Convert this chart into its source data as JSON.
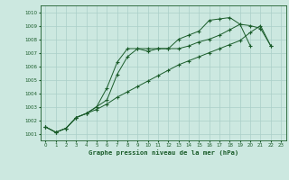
{
  "title": "Graphe pression niveau de la mer (hPa)",
  "xlim": [
    -0.5,
    23.5
  ],
  "ylim": [
    1000.5,
    1010.5
  ],
  "yticks": [
    1001,
    1002,
    1003,
    1004,
    1005,
    1006,
    1007,
    1008,
    1009,
    1010
  ],
  "xticks": [
    0,
    1,
    2,
    3,
    4,
    5,
    6,
    7,
    8,
    9,
    10,
    11,
    12,
    13,
    14,
    15,
    16,
    17,
    18,
    19,
    20,
    21,
    22,
    23
  ],
  "background_color": "#cce8e0",
  "grid_color": "#aacfc8",
  "line_color": "#1a5c2a",
  "line1": [
    1001.5,
    1001.1,
    1001.4,
    1002.2,
    1002.5,
    1003.0,
    1004.4,
    1006.3,
    1007.3,
    1007.3,
    1007.1,
    1007.3,
    1007.3,
    1008.0,
    1008.3,
    1008.6,
    1009.4,
    1009.5,
    1009.6,
    1009.1,
    1009.0,
    1008.8,
    1007.5,
    null
  ],
  "line2": [
    1001.5,
    1001.1,
    1001.4,
    1002.2,
    1002.5,
    1003.0,
    1003.5,
    1005.4,
    1006.7,
    1007.3,
    1007.3,
    1007.3,
    1007.3,
    1007.3,
    1007.5,
    1007.8,
    1008.0,
    1008.3,
    1008.7,
    1009.1,
    1007.5,
    null,
    null,
    null
  ],
  "line3": [
    1001.5,
    1001.1,
    1001.4,
    1002.2,
    1002.5,
    1002.8,
    1003.2,
    1003.7,
    1004.1,
    1004.5,
    1004.9,
    1005.3,
    1005.7,
    1006.1,
    1006.4,
    1006.7,
    1007.0,
    1007.3,
    1007.6,
    1007.9,
    1008.5,
    1009.0,
    1007.5,
    null
  ]
}
